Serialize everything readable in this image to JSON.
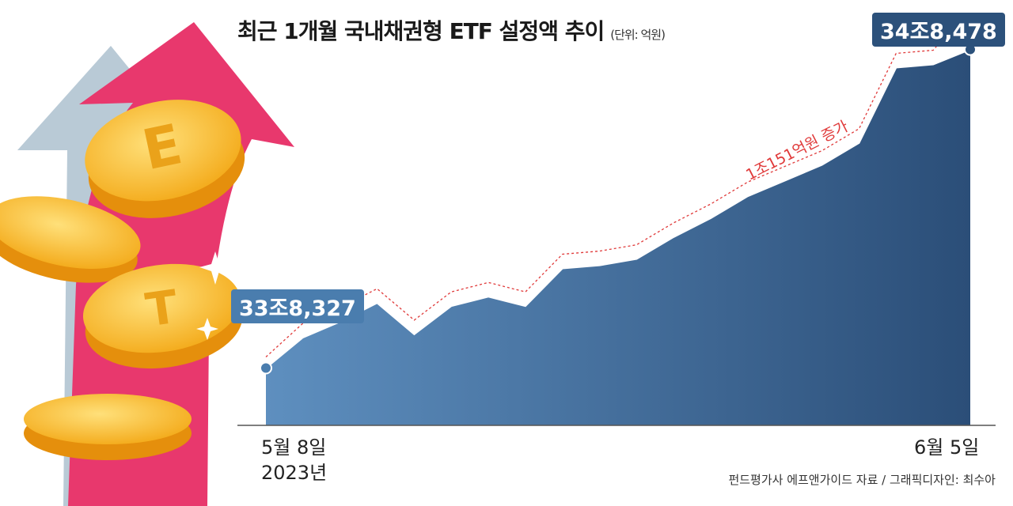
{
  "title": "최근 1개월 국내채권형 ETF 설정액 추이",
  "unit_note": "(단위: 억원)",
  "start_callout": "33조8,327",
  "end_callout": "34조8,478",
  "increase_annotation": "1조151억원 증가",
  "x_start_label": "5월 8일",
  "x_start_year": "2023년",
  "x_end_label": "6월 5일",
  "source_note": "펀드평가사 에프앤가이드 자료 / 그래픽디자인: 최수아",
  "colors": {
    "area_light": "#5e8fbf",
    "area_dark": "#2b4e78",
    "trend_line": "#e03a3a",
    "arrow_pink": "#e8386d",
    "arrow_gray": "#b9cad6",
    "coin": "#f6b324"
  },
  "chart_data": {
    "type": "area",
    "title": "최근 1개월 국내채권형 ETF 설정액 추이",
    "ylabel": "",
    "xlabel": "",
    "unit": "억원",
    "x_labels_shown": [
      "5월 8일",
      "6월 5일"
    ],
    "ylim": [
      336500,
      349500
    ],
    "series": [
      {
        "values": [
          338327,
          339300,
          339800,
          340400,
          339400,
          340300,
          340600,
          340300,
          341500,
          341600,
          341800,
          342500,
          343100,
          343800,
          344300,
          344800,
          345500,
          347900,
          348000,
          348478
        ]
      }
    ],
    "annotations": [
      "33조8,327",
      "34조8,478",
      "1조151억원 증가"
    ]
  }
}
